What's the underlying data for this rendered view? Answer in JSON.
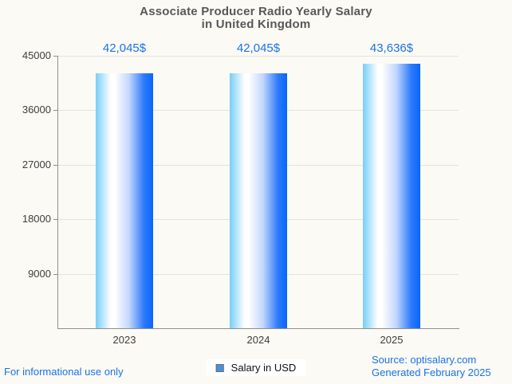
{
  "page": {
    "background_color": "#fcfaf4",
    "accent_color": "#1a73e8",
    "title_color": "#57585a",
    "axis_color": "#8f8f8f",
    "gridline_color": "#e4e2dd"
  },
  "title": {
    "line1": "Associate Producer Radio Yearly Salary",
    "line2": "in United Kingdom"
  },
  "chart_data": {
    "type": "bar",
    "title": "Associate Producer Radio Yearly Salary in United Kingdom",
    "categories": [
      "2023",
      "2024",
      "2025"
    ],
    "series": [
      {
        "name": "Salary in USD",
        "values": [
          42045,
          42045,
          43636
        ],
        "value_labels": [
          "42,045$",
          "42,045$",
          "43,636$"
        ]
      }
    ],
    "xlabel": "",
    "ylabel": "",
    "ylim": [
      0,
      45000
    ],
    "yticks": [
      9000,
      18000,
      27000,
      36000,
      45000
    ],
    "grid": true,
    "legend_position": "bottom",
    "bar_gradient_stops": [
      [
        "#76cef7",
        "0%"
      ],
      [
        "#ffffff",
        "26%"
      ],
      [
        "#ffffff",
        "33%"
      ],
      [
        "#c3d7fd",
        "58%"
      ],
      [
        "#2e7afc",
        "84%"
      ],
      [
        "#0766fb",
        "100%"
      ]
    ],
    "value_label_color": "#1a73e8"
  },
  "legend": {
    "label": "Salary in USD",
    "marker_color": "#4a90e2"
  },
  "footer": {
    "left": "For informational use only",
    "source_line1": "Source: optisalary.com",
    "source_line2": "Generated February 2025"
  }
}
